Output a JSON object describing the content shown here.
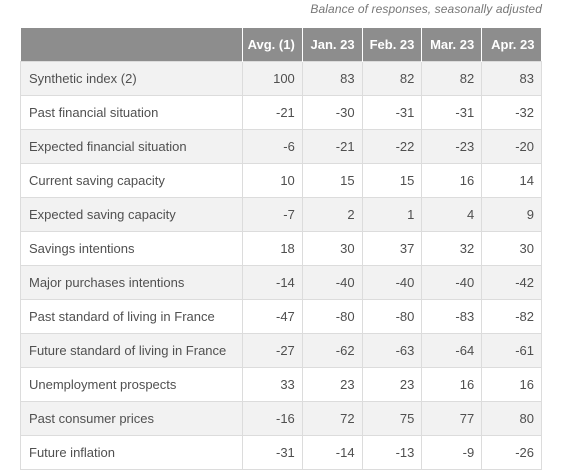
{
  "caption": "Balance of responses, seasonally adjusted",
  "table": {
    "headers": [
      "",
      "Avg. (1)",
      "Jan. 23",
      "Feb. 23",
      "Mar. 23",
      "Apr. 23"
    ],
    "rows": [
      {
        "label": "Synthetic index (2)",
        "values": [
          "100",
          "83",
          "82",
          "82",
          "83"
        ]
      },
      {
        "label": "Past financial situation",
        "values": [
          "-21",
          "-30",
          "-31",
          "-31",
          "-32"
        ]
      },
      {
        "label": "Expected financial situation",
        "values": [
          "-6",
          "-21",
          "-22",
          "-23",
          "-20"
        ]
      },
      {
        "label": "Current saving capacity",
        "values": [
          "10",
          "15",
          "15",
          "16",
          "14"
        ]
      },
      {
        "label": "Expected saving capacity",
        "values": [
          "-7",
          "2",
          "1",
          "4",
          "9"
        ]
      },
      {
        "label": "Savings intentions",
        "values": [
          "18",
          "30",
          "37",
          "32",
          "30"
        ]
      },
      {
        "label": "Major purchases intentions",
        "values": [
          "-14",
          "-40",
          "-40",
          "-40",
          "-42"
        ]
      },
      {
        "label": "Past standard of living in France",
        "values": [
          "-47",
          "-80",
          "-80",
          "-83",
          "-82"
        ]
      },
      {
        "label": "Future standard of living in France",
        "values": [
          "-27",
          "-62",
          "-63",
          "-64",
          "-61"
        ]
      },
      {
        "label": "Unemployment prospects",
        "values": [
          "33",
          "23",
          "23",
          "16",
          "16"
        ]
      },
      {
        "label": "Past consumer prices",
        "values": [
          "-16",
          "72",
          "75",
          "77",
          "80"
        ]
      },
      {
        "label": "Future inflation",
        "values": [
          "-31",
          "-14",
          "-13",
          "-9",
          "-26"
        ]
      }
    ]
  },
  "colors": {
    "header_bg": "#8d8d8d",
    "header_text": "#ffffff",
    "row_alt_bg": "#f2f2f2",
    "row_bg": "#ffffff"
  }
}
